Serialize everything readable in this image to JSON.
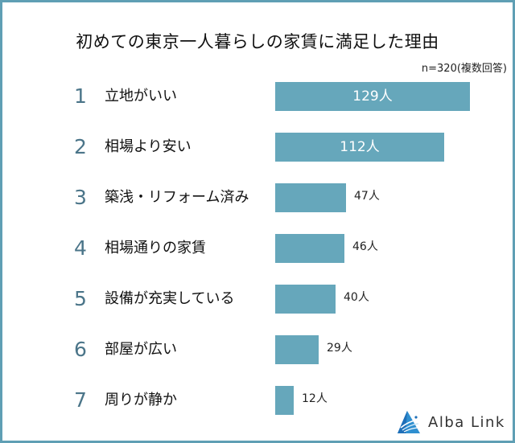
{
  "title": "初めての東京一人暮らしの家賃に満足した理由",
  "note": "n=320(複数回答)",
  "unit": "人",
  "colors": {
    "bar": "#66a7bb",
    "border": "#5f9fb4",
    "rank": "#4b7589"
  },
  "rows": [
    {
      "rank": "1",
      "label": "立地がいい",
      "value": 129,
      "value_label": "129人"
    },
    {
      "rank": "2",
      "label": "相場より安い",
      "value": 112,
      "value_label": "112人"
    },
    {
      "rank": "3",
      "label": "築浅・リフォーム済み",
      "value": 47,
      "value_label": "47人"
    },
    {
      "rank": "4",
      "label": "相場通りの家賃",
      "value": 46,
      "value_label": "46人"
    },
    {
      "rank": "5",
      "label": "設備が充実している",
      "value": 40,
      "value_label": "40人"
    },
    {
      "rank": "6",
      "label": "部屋が広い",
      "value": 29,
      "value_label": "29人"
    },
    {
      "rank": "7",
      "label": "周りが静か",
      "value": 12,
      "value_label": "12人"
    }
  ],
  "logo": {
    "text": "Alba Link",
    "icon": "alba-link-triangle-icon"
  },
  "chart_data": {
    "type": "bar",
    "orientation": "horizontal",
    "title": "初めての東京一人暮らしの家賃に満足した理由",
    "subtitle": "n=320(複数回答)",
    "categories": [
      "立地がいい",
      "相場より安い",
      "築浅・リフォーム済み",
      "相場通りの家賃",
      "設備が充実している",
      "部屋が広い",
      "周りが静か"
    ],
    "values": [
      129,
      112,
      47,
      46,
      40,
      29,
      12
    ],
    "data_labels": [
      "129人",
      "112人",
      "47人",
      "46人",
      "40人",
      "29人",
      "12人"
    ],
    "xlabel": "",
    "ylabel": "",
    "grid": false,
    "legend": null
  }
}
